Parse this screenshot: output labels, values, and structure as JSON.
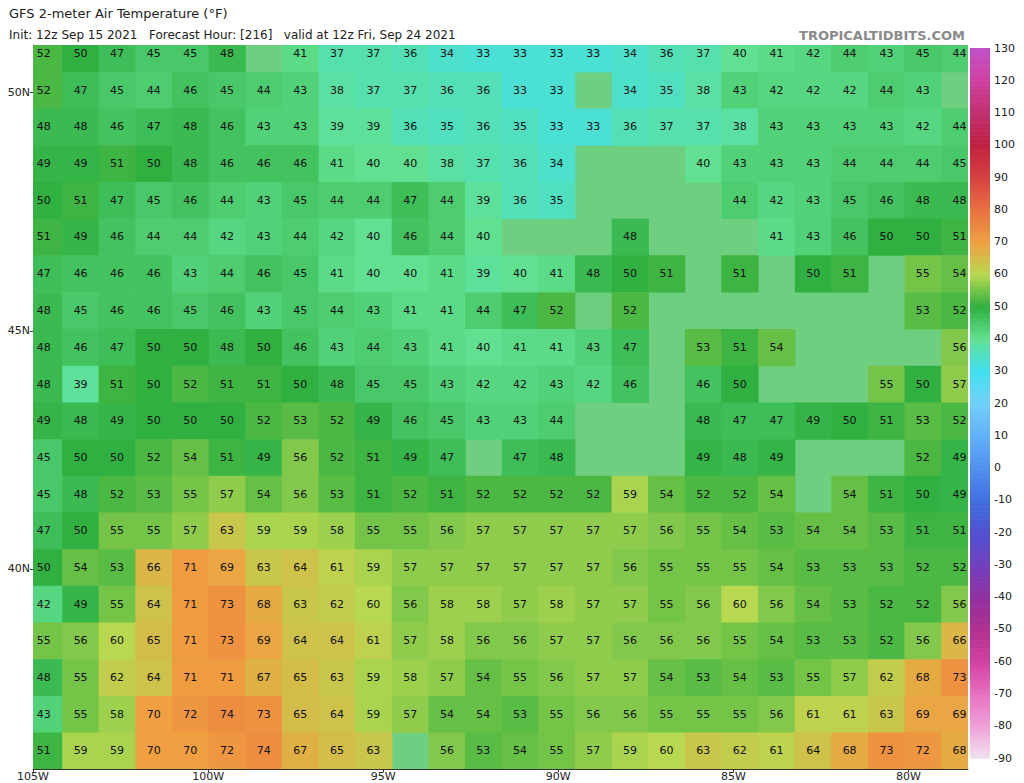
{
  "chart_data": {
    "type": "heatmap",
    "title": "GFS 2-meter Air Temperature (°F)",
    "subtitle": "Init: 12z Sep 15 2021   Forecast Hour: [216]   valid at 12z Fri, Sep 24 2021",
    "annotation": "TROPICALTIDBITS.COM",
    "x": [
      -104.69,
      -103.64,
      -102.6,
      -101.55,
      -100.51,
      -99.46,
      -98.41,
      -97.37,
      -96.32,
      -95.28,
      -94.23,
      -93.18,
      -92.14,
      -91.09,
      -90.05,
      -89.0,
      -87.95,
      -86.91,
      -85.86,
      -84.82,
      -83.77,
      -82.72,
      -81.68,
      -80.63,
      -79.59,
      -78.54
    ],
    "y": [
      50.82,
      50.05,
      49.28,
      48.51,
      47.74,
      46.97,
      46.2,
      45.42,
      44.65,
      43.88,
      43.11,
      42.34,
      41.57,
      40.8,
      40.03,
      39.26,
      38.49,
      37.72,
      36.95,
      36.18
    ],
    "values": [
      [
        52,
        50,
        47,
        45,
        45,
        48,
        null,
        41,
        37,
        37,
        36,
        34,
        33,
        33,
        33,
        33,
        34,
        36,
        37,
        40,
        41,
        42,
        44,
        43,
        45,
        44
      ],
      [
        52,
        47,
        45,
        44,
        46,
        45,
        44,
        43,
        38,
        37,
        37,
        36,
        36,
        33,
        33,
        null,
        34,
        35,
        38,
        43,
        42,
        42,
        42,
        44,
        43,
        null
      ],
      [
        48,
        48,
        46,
        47,
        48,
        46,
        43,
        43,
        39,
        39,
        36,
        35,
        36,
        35,
        33,
        33,
        36,
        37,
        37,
        38,
        43,
        43,
        43,
        43,
        42,
        44
      ],
      [
        49,
        49,
        51,
        50,
        48,
        46,
        46,
        46,
        41,
        40,
        40,
        38,
        37,
        36,
        34,
        null,
        null,
        null,
        40,
        43,
        43,
        43,
        44,
        44,
        44,
        45
      ],
      [
        50,
        51,
        47,
        45,
        46,
        44,
        43,
        45,
        44,
        44,
        47,
        44,
        39,
        36,
        35,
        null,
        null,
        null,
        null,
        44,
        42,
        43,
        45,
        46,
        48,
        48
      ],
      [
        51,
        49,
        46,
        44,
        44,
        42,
        43,
        44,
        42,
        40,
        46,
        44,
        40,
        null,
        null,
        null,
        48,
        null,
        null,
        null,
        41,
        43,
        46,
        50,
        50,
        51
      ],
      [
        47,
        46,
        46,
        46,
        43,
        44,
        46,
        45,
        41,
        40,
        40,
        41,
        39,
        40,
        41,
        48,
        50,
        51,
        null,
        51,
        null,
        50,
        51,
        null,
        55,
        54
      ],
      [
        48,
        45,
        46,
        46,
        45,
        46,
        43,
        45,
        44,
        43,
        41,
        41,
        44,
        47,
        52,
        null,
        52,
        null,
        null,
        null,
        null,
        null,
        null,
        null,
        53,
        52
      ],
      [
        48,
        46,
        47,
        50,
        50,
        48,
        50,
        46,
        43,
        44,
        43,
        41,
        40,
        41,
        41,
        43,
        47,
        null,
        53,
        51,
        54,
        null,
        null,
        null,
        null,
        56
      ],
      [
        48,
        39,
        51,
        50,
        52,
        51,
        51,
        50,
        48,
        45,
        45,
        43,
        42,
        42,
        43,
        42,
        46,
        null,
        46,
        50,
        null,
        null,
        null,
        55,
        50,
        57
      ],
      [
        49,
        48,
        49,
        50,
        50,
        50,
        52,
        53,
        52,
        49,
        46,
        45,
        43,
        43,
        44,
        null,
        null,
        null,
        48,
        47,
        47,
        49,
        50,
        51,
        53,
        52
      ],
      [
        45,
        50,
        50,
        52,
        54,
        51,
        49,
        56,
        52,
        51,
        49,
        47,
        null,
        47,
        48,
        null,
        null,
        null,
        49,
        48,
        49,
        null,
        null,
        null,
        52,
        49
      ],
      [
        45,
        48,
        52,
        53,
        55,
        57,
        54,
        56,
        53,
        51,
        52,
        51,
        52,
        52,
        52,
        52,
        59,
        54,
        52,
        52,
        54,
        null,
        54,
        51,
        50,
        49
      ],
      [
        47,
        50,
        55,
        55,
        57,
        63,
        59,
        59,
        58,
        55,
        55,
        56,
        57,
        57,
        57,
        57,
        57,
        56,
        55,
        54,
        53,
        54,
        54,
        53,
        51,
        51
      ],
      [
        50,
        54,
        53,
        66,
        71,
        69,
        63,
        64,
        61,
        59,
        57,
        57,
        57,
        57,
        57,
        57,
        56,
        55,
        55,
        55,
        54,
        53,
        53,
        53,
        52,
        52
      ],
      [
        42,
        49,
        55,
        64,
        71,
        73,
        68,
        63,
        62,
        60,
        56,
        58,
        58,
        57,
        58,
        57,
        57,
        55,
        56,
        60,
        56,
        54,
        53,
        52,
        52,
        56
      ],
      [
        55,
        56,
        60,
        65,
        71,
        73,
        69,
        64,
        64,
        61,
        57,
        58,
        56,
        56,
        57,
        57,
        56,
        56,
        56,
        55,
        54,
        53,
        53,
        52,
        56,
        66
      ],
      [
        48,
        55,
        62,
        64,
        71,
        71,
        67,
        65,
        63,
        59,
        58,
        57,
        54,
        55,
        56,
        57,
        57,
        54,
        53,
        54,
        53,
        55,
        57,
        62,
        68,
        73
      ],
      [
        43,
        55,
        58,
        70,
        72,
        74,
        73,
        65,
        64,
        59,
        57,
        54,
        54,
        53,
        55,
        56,
        56,
        55,
        55,
        55,
        56,
        61,
        61,
        63,
        69,
        69
      ],
      [
        51,
        59,
        59,
        70,
        70,
        72,
        74,
        67,
        65,
        63,
        null,
        56,
        53,
        54,
        55,
        57,
        59,
        60,
        63,
        62,
        61,
        64,
        68,
        73,
        72,
        68
      ]
    ],
    "xlim": [
      -105,
      -78.3
    ],
    "ylim": [
      35.8,
      51.0
    ],
    "xticks": [
      {
        "value": -105,
        "label": "105W"
      },
      {
        "value": -100,
        "label": "100W"
      },
      {
        "value": -95,
        "label": "95W"
      },
      {
        "value": -90,
        "label": "90W"
      },
      {
        "value": -85,
        "label": "85W"
      },
      {
        "value": -80,
        "label": "80W"
      }
    ],
    "yticks": [
      {
        "value": 40,
        "label": "40N"
      },
      {
        "value": 45,
        "label": "45N"
      },
      {
        "value": 50,
        "label": "50N"
      }
    ],
    "colorbar_range": [
      -90,
      130
    ],
    "colorbar_ticks": [
      -90,
      -80,
      -70,
      -60,
      -50,
      -40,
      -30,
      -20,
      -10,
      0,
      10,
      20,
      30,
      40,
      50,
      60,
      70,
      80,
      90,
      100,
      110,
      120,
      130
    ],
    "data_labels": true,
    "grid": false
  }
}
